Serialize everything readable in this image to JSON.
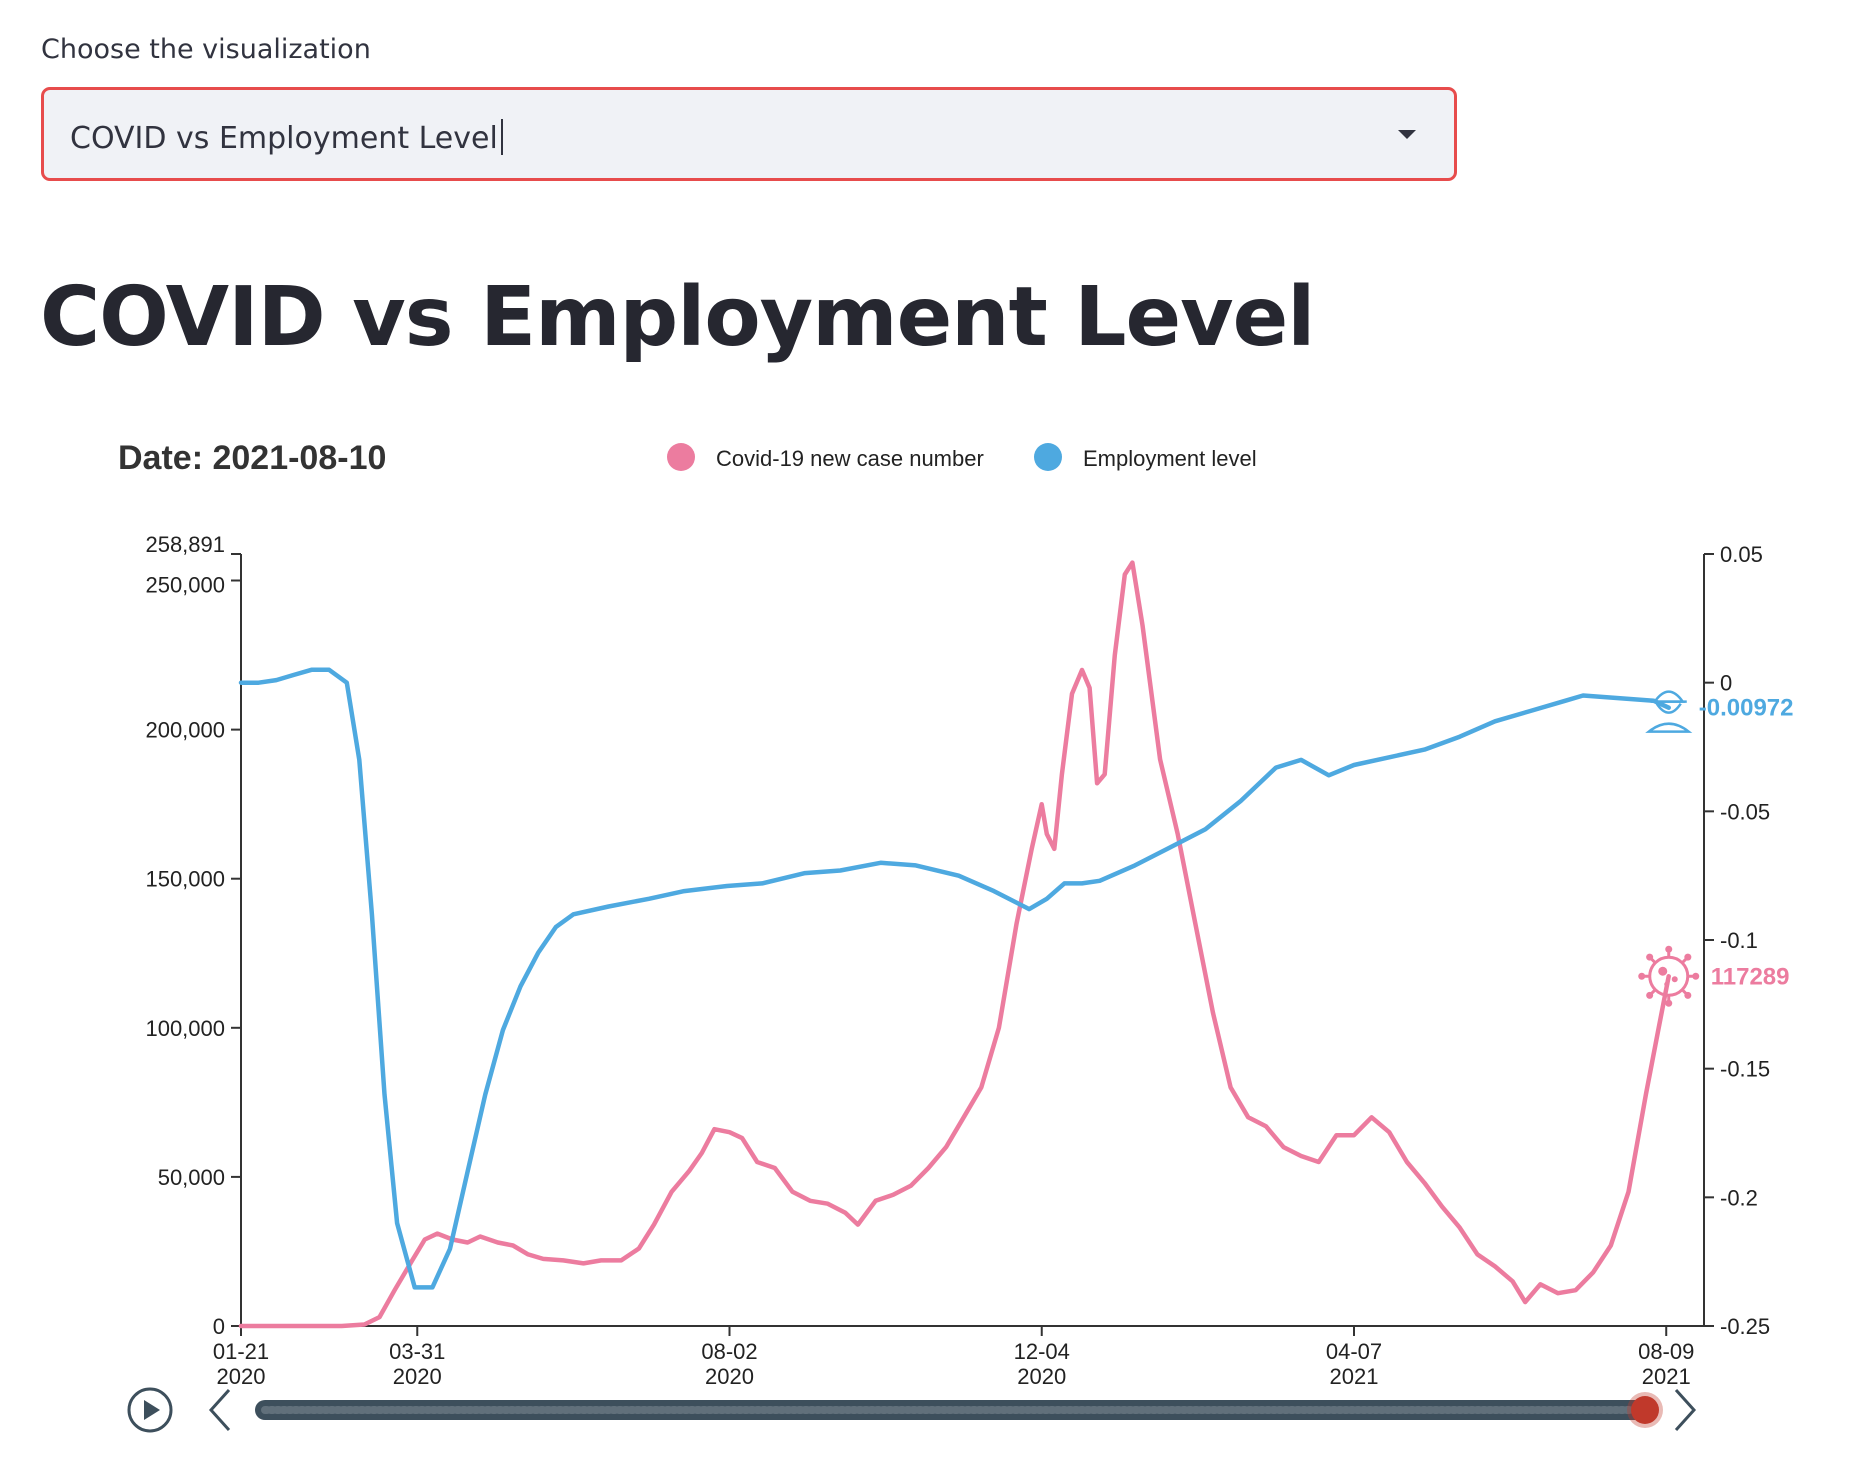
{
  "select": {
    "label": "Choose the visualization",
    "value": "COVID vs Employment Level"
  },
  "page_title": "COVID vs Employment Level",
  "chart_data": {
    "type": "line",
    "title": "Date: 2021-08-10",
    "legend_position": "top",
    "colors": {
      "covid": "#ec7c9f",
      "employment": "#4ea9e0",
      "slider_handle": "#c0392b",
      "slider_track": "#3d4f5c"
    },
    "x_ticks": [
      {
        "date": "2020-01-21",
        "line1": "01-21",
        "line2": "2020"
      },
      {
        "date": "2020-03-31",
        "line1": "03-31",
        "line2": "2020"
      },
      {
        "date": "2020-08-02",
        "line1": "08-02",
        "line2": "2020"
      },
      {
        "date": "2020-12-04",
        "line1": "12-04",
        "line2": "2020"
      },
      {
        "date": "2021-04-07",
        "line1": "04-07",
        "line2": "2021"
      },
      {
        "date": "2021-08-09",
        "line1": "08-09",
        "line2": "2021"
      }
    ],
    "xlim": [
      "2020-01-21",
      "2021-08-24"
    ],
    "y_left": {
      "ylim": [
        0,
        258891
      ],
      "ticks": [
        {
          "value": 0,
          "label": "0"
        },
        {
          "value": 50000,
          "label": "50,000"
        },
        {
          "value": 100000,
          "label": "100,000"
        },
        {
          "value": 150000,
          "label": "150,000"
        },
        {
          "value": 200000,
          "label": "200,000"
        },
        {
          "value": 250000,
          "label": "250,000"
        },
        {
          "value": 258891,
          "label": "258,891"
        }
      ]
    },
    "y_right": {
      "ylim": [
        -0.25,
        0.05
      ],
      "ticks": [
        {
          "value": 0.05,
          "label": "0.05"
        },
        {
          "value": 0,
          "label": "0"
        },
        {
          "value": -0.05,
          "label": "-0.05"
        },
        {
          "value": -0.1,
          "label": "-0.1"
        },
        {
          "value": -0.15,
          "label": "-0.15"
        },
        {
          "value": -0.2,
          "label": "-0.2"
        },
        {
          "value": -0.25,
          "label": "-0.25"
        }
      ]
    },
    "series": [
      {
        "key": "covid",
        "name": "Covid-19 new case number",
        "axis": "left",
        "end_label": "117289",
        "points": [
          [
            "2020-01-21",
            0
          ],
          [
            "2020-03-01",
            0
          ],
          [
            "2020-03-10",
            500
          ],
          [
            "2020-03-16",
            3000
          ],
          [
            "2020-03-22",
            12000
          ],
          [
            "2020-03-29",
            22000
          ],
          [
            "2020-04-03",
            29000
          ],
          [
            "2020-04-08",
            31000
          ],
          [
            "2020-04-14",
            29000
          ],
          [
            "2020-04-20",
            28000
          ],
          [
            "2020-04-25",
            30000
          ],
          [
            "2020-05-02",
            28000
          ],
          [
            "2020-05-08",
            27000
          ],
          [
            "2020-05-14",
            24000
          ],
          [
            "2020-05-20",
            22500
          ],
          [
            "2020-05-28",
            22000
          ],
          [
            "2020-06-05",
            21000
          ],
          [
            "2020-06-12",
            22000
          ],
          [
            "2020-06-20",
            22000
          ],
          [
            "2020-06-27",
            26000
          ],
          [
            "2020-07-03",
            34000
          ],
          [
            "2020-07-10",
            45000
          ],
          [
            "2020-07-17",
            52000
          ],
          [
            "2020-07-22",
            58000
          ],
          [
            "2020-07-27",
            66000
          ],
          [
            "2020-08-02",
            65000
          ],
          [
            "2020-08-07",
            63000
          ],
          [
            "2020-08-13",
            55000
          ],
          [
            "2020-08-20",
            53000
          ],
          [
            "2020-08-27",
            45000
          ],
          [
            "2020-09-03",
            42000
          ],
          [
            "2020-09-10",
            41000
          ],
          [
            "2020-09-17",
            38000
          ],
          [
            "2020-09-22",
            34000
          ],
          [
            "2020-09-29",
            42000
          ],
          [
            "2020-10-06",
            44000
          ],
          [
            "2020-10-13",
            47000
          ],
          [
            "2020-10-20",
            53000
          ],
          [
            "2020-10-27",
            60000
          ],
          [
            "2020-11-03",
            70000
          ],
          [
            "2020-11-10",
            80000
          ],
          [
            "2020-11-17",
            100000
          ],
          [
            "2020-11-24",
            135000
          ],
          [
            "2020-11-30",
            160000
          ],
          [
            "2020-12-04",
            175000
          ],
          [
            "2020-12-06",
            165000
          ],
          [
            "2020-12-09",
            160000
          ],
          [
            "2020-12-12",
            185000
          ],
          [
            "2020-12-16",
            212000
          ],
          [
            "2020-12-20",
            220000
          ],
          [
            "2020-12-23",
            214000
          ],
          [
            "2020-12-26",
            182000
          ],
          [
            "2020-12-29",
            185000
          ],
          [
            "2021-01-02",
            225000
          ],
          [
            "2021-01-06",
            252000
          ],
          [
            "2021-01-09",
            256000
          ],
          [
            "2021-01-13",
            235000
          ],
          [
            "2021-01-20",
            190000
          ],
          [
            "2021-01-27",
            165000
          ],
          [
            "2021-02-03",
            135000
          ],
          [
            "2021-02-10",
            105000
          ],
          [
            "2021-02-17",
            80000
          ],
          [
            "2021-02-24",
            70000
          ],
          [
            "2021-03-03",
            67000
          ],
          [
            "2021-03-10",
            60000
          ],
          [
            "2021-03-17",
            57000
          ],
          [
            "2021-03-24",
            55000
          ],
          [
            "2021-03-31",
            64000
          ],
          [
            "2021-04-07",
            64000
          ],
          [
            "2021-04-14",
            70000
          ],
          [
            "2021-04-21",
            65000
          ],
          [
            "2021-04-28",
            55000
          ],
          [
            "2021-05-05",
            48000
          ],
          [
            "2021-05-12",
            40000
          ],
          [
            "2021-05-19",
            33000
          ],
          [
            "2021-05-26",
            24000
          ],
          [
            "2021-06-02",
            20000
          ],
          [
            "2021-06-09",
            15000
          ],
          [
            "2021-06-14",
            8000
          ],
          [
            "2021-06-20",
            14000
          ],
          [
            "2021-06-27",
            11000
          ],
          [
            "2021-07-04",
            12000
          ],
          [
            "2021-07-11",
            18000
          ],
          [
            "2021-07-18",
            27000
          ],
          [
            "2021-07-25",
            45000
          ],
          [
            "2021-08-01",
            78000
          ],
          [
            "2021-08-06",
            100000
          ],
          [
            "2021-08-10",
            117289
          ]
        ]
      },
      {
        "key": "employment",
        "name": "Employment level",
        "axis": "right",
        "end_label": "-0.00972",
        "points": [
          [
            "2020-01-21",
            0.0
          ],
          [
            "2020-01-28",
            0.0
          ],
          [
            "2020-02-04",
            0.001
          ],
          [
            "2020-02-11",
            0.003
          ],
          [
            "2020-02-18",
            0.005
          ],
          [
            "2020-02-25",
            0.005
          ],
          [
            "2020-03-03",
            0.0
          ],
          [
            "2020-03-08",
            -0.03
          ],
          [
            "2020-03-13",
            -0.09
          ],
          [
            "2020-03-18",
            -0.16
          ],
          [
            "2020-03-23",
            -0.21
          ],
          [
            "2020-03-30",
            -0.235
          ],
          [
            "2020-04-06",
            -0.235
          ],
          [
            "2020-04-13",
            -0.22
          ],
          [
            "2020-04-20",
            -0.19
          ],
          [
            "2020-04-27",
            -0.16
          ],
          [
            "2020-05-04",
            -0.135
          ],
          [
            "2020-05-11",
            -0.118
          ],
          [
            "2020-05-18",
            -0.105
          ],
          [
            "2020-05-25",
            -0.095
          ],
          [
            "2020-06-01",
            -0.09
          ],
          [
            "2020-06-15",
            -0.087
          ],
          [
            "2020-07-01",
            -0.084
          ],
          [
            "2020-07-15",
            -0.081
          ],
          [
            "2020-08-01",
            -0.079
          ],
          [
            "2020-08-15",
            -0.078
          ],
          [
            "2020-09-01",
            -0.074
          ],
          [
            "2020-09-15",
            -0.073
          ],
          [
            "2020-10-01",
            -0.07
          ],
          [
            "2020-10-15",
            -0.071
          ],
          [
            "2020-11-01",
            -0.075
          ],
          [
            "2020-11-15",
            -0.081
          ],
          [
            "2020-11-29",
            -0.088
          ],
          [
            "2020-12-06",
            -0.084
          ],
          [
            "2020-12-13",
            -0.078
          ],
          [
            "2020-12-20",
            -0.078
          ],
          [
            "2020-12-27",
            -0.077
          ],
          [
            "2021-01-10",
            -0.071
          ],
          [
            "2021-01-24",
            -0.064
          ],
          [
            "2021-02-07",
            -0.057
          ],
          [
            "2021-02-21",
            -0.046
          ],
          [
            "2021-03-07",
            -0.033
          ],
          [
            "2021-03-17",
            -0.03
          ],
          [
            "2021-03-28",
            -0.036
          ],
          [
            "2021-04-07",
            -0.032
          ],
          [
            "2021-04-21",
            -0.029
          ],
          [
            "2021-05-05",
            -0.026
          ],
          [
            "2021-05-19",
            -0.021
          ],
          [
            "2021-06-02",
            -0.015
          ],
          [
            "2021-06-16",
            -0.011
          ],
          [
            "2021-06-30",
            -0.007
          ],
          [
            "2021-07-07",
            -0.005
          ],
          [
            "2021-07-21",
            -0.006
          ],
          [
            "2021-08-04",
            -0.007
          ],
          [
            "2021-08-10",
            -0.00972
          ]
        ]
      }
    ],
    "timeline": {
      "play_icon": "play-icon",
      "prev_icon": "chevron-left-icon",
      "next_icon": "chevron-right-icon",
      "progress": 1.0
    }
  }
}
